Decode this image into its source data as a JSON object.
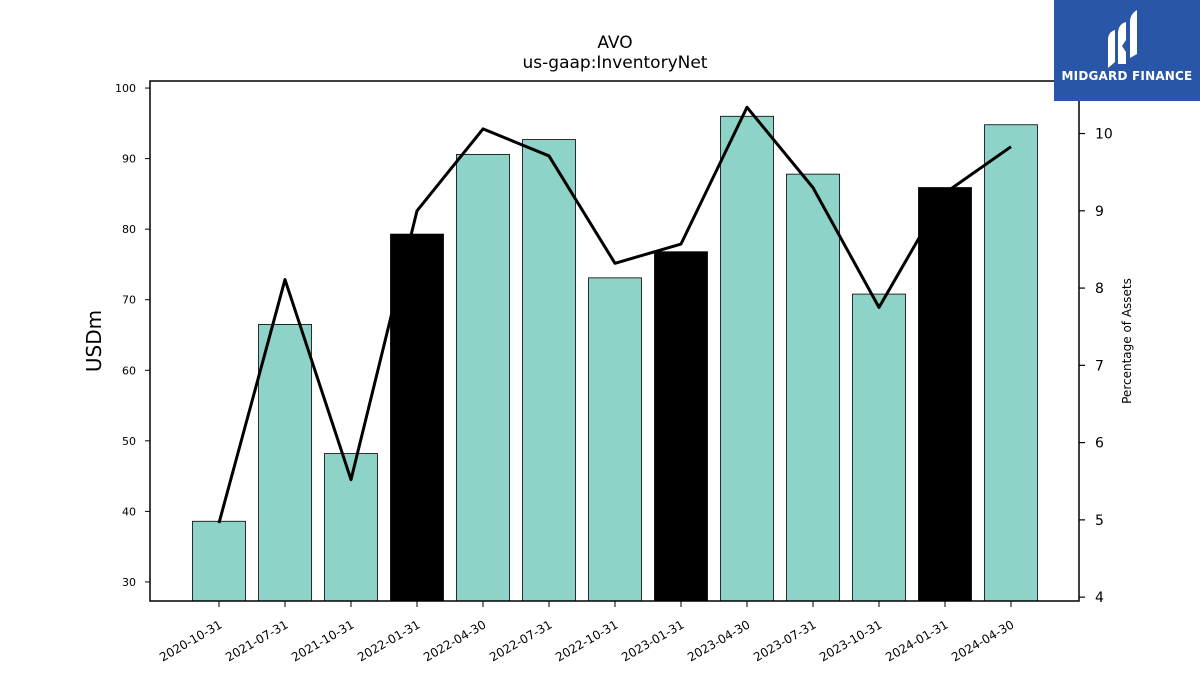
{
  "chart_data": {
    "type": "bar",
    "title": "AVO",
    "subtitle": "us-gaap:InventoryNet",
    "ylabel": "USDm",
    "y2label": "Percentage of Assets",
    "categories": [
      "2020-10-31",
      "2021-07-31",
      "2021-10-31",
      "2022-01-31",
      "2022-04-30",
      "2022-07-31",
      "2022-10-31",
      "2023-01-31",
      "2023-04-30",
      "2023-07-31",
      "2023-10-31",
      "2024-01-31",
      "2024-04-30"
    ],
    "series": [
      {
        "values": [
          38.6,
          66.5,
          48.2,
          79.3,
          90.6,
          92.7,
          73.1,
          76.8,
          96.0,
          87.8,
          70.8,
          85.9,
          94.8
        ],
        "bar_colors": [
          "#8dd3c7",
          "#8dd3c7",
          "#8dd3c7",
          "#000000",
          "#8dd3c7",
          "#8dd3c7",
          "#8dd3c7",
          "#000000",
          "#8dd3c7",
          "#8dd3c7",
          "#8dd3c7",
          "#000000",
          "#8dd3c7"
        ],
        "axis": "left"
      },
      {
        "values": [
          4.96,
          8.11,
          5.52,
          9.0,
          10.06,
          9.71,
          8.32,
          8.57,
          10.34,
          9.3,
          7.75,
          9.23,
          9.83
        ],
        "color": "#000000",
        "axis": "right",
        "type": "line"
      }
    ],
    "ylim": [
      27.3,
      101
    ],
    "y2lim": [
      3.95,
      10.68
    ],
    "yticks": [
      30,
      40,
      50,
      60,
      70,
      80,
      90,
      100
    ],
    "y2ticks": [
      4,
      5,
      6,
      7,
      8,
      9,
      10
    ],
    "grid": false
  },
  "logo": {
    "text": "MIDGARD FINANCE",
    "color": "#2a56a8"
  }
}
